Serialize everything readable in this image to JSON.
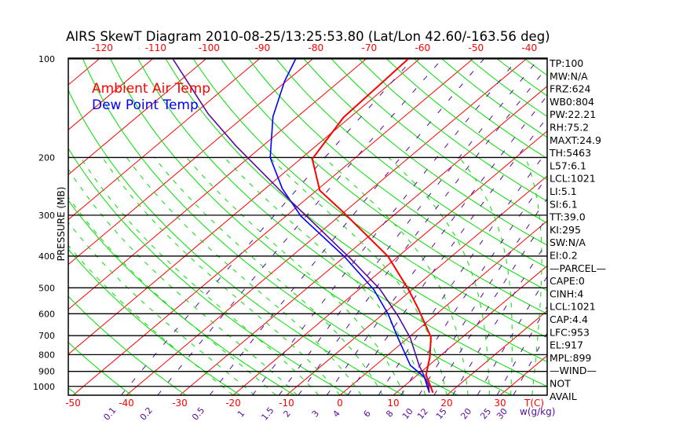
{
  "chart_data": {
    "type": "line",
    "title": "AIRS SkewT Diagram 2010-08-25/13:25:53.80 (Lat/Lon 42.60/-163.56 deg)",
    "ylabel": "PRESSURE (MB)",
    "xlabel": "T(C)",
    "mixing_ratio_label": "w(g/kg)",
    "pressure_range": [
      1064,
      100
    ],
    "pressure_ticks": [
      100,
      200,
      300,
      400,
      500,
      600,
      700,
      800,
      900,
      1000
    ],
    "bottom_temp_ticks": [
      -50,
      -40,
      -30,
      -20,
      -10,
      0,
      10,
      20,
      30
    ],
    "top_temp_ticks": [
      -120,
      -110,
      -100,
      -90,
      -80,
      -70,
      -60,
      -50,
      -40
    ],
    "mixing_ratio_ticks": [
      "0.1",
      "0.2",
      "0.5",
      "1",
      "1.5",
      "2",
      "3",
      "4",
      "6",
      "8",
      "10",
      "12",
      "15",
      "20",
      "25",
      "30"
    ],
    "legend": [
      {
        "label": "Ambient Air Temp",
        "color": "#ff0000"
      },
      {
        "label": "Dew Point Temp",
        "color": "#0000ff"
      }
    ],
    "legend_position": "top-left",
    "colors": {
      "isotherm": "#ff0000",
      "dry_adiabat": "#00e000",
      "moist_adiabat": "#00e000",
      "mixing_ratio": "#5a0aa0",
      "isobar": "#000000"
    },
    "series": [
      {
        "name": "Ambient Air Temp",
        "color": "#ff0000",
        "pressure": [
          100,
          151,
          202,
          252,
          294,
          401,
          506,
          579,
          707,
          815,
          922,
          1046
        ],
        "temperature": [
          -62.1,
          -61.2,
          -57.8,
          -49.4,
          -40.1,
          -21.9,
          -10.7,
          -4.6,
          4.1,
          8.4,
          11.6,
          16.9
        ]
      },
      {
        "name": "Dew Point Temp",
        "color": "#0000ff",
        "pressure": [
          100,
          117,
          150,
          200,
          249,
          302,
          401,
          506,
          602,
          711,
          862,
          937,
          1041
        ],
        "temperature": [
          -83.2,
          -80.3,
          -74.6,
          -66.0,
          -56.8,
          -47.2,
          -30.1,
          -17.2,
          -9.0,
          -1.9,
          6.5,
          11.8,
          16.0
        ]
      },
      {
        "name": "Parcel",
        "color": "#5a0aa0",
        "pressure": [
          100,
          147,
          184,
          266,
          325,
          409,
          506,
          609,
          711,
          863,
          990,
          1046
        ],
        "temperature": [
          -106.2,
          -87.4,
          -75.1,
          -53.7,
          -41.8,
          -28.2,
          -16.0,
          -6.8,
          0.4,
          8.2,
          14.3,
          16.2
        ]
      }
    ]
  },
  "indices": [
    "TP:100",
    "MW:N/A",
    "FRZ:624",
    "WB0:804",
    "PW:22.21",
    "RH:75.2",
    "MAXT:24.9",
    "TH:5463",
    "L57:6.1",
    "LCL:1021",
    "LI:5.1",
    "SI:6.1",
    "TT:39.0",
    "KI:295",
    "SW:N/A",
    "EI:0.2",
    "—PARCEL—",
    "CAPE:0",
    "CINH:4",
    "LCL:1021",
    "CAP:4.4",
    "LFC:953",
    "EL:917",
    "MPL:899",
    "—WIND—",
    "NOT",
    "AVAIL"
  ]
}
